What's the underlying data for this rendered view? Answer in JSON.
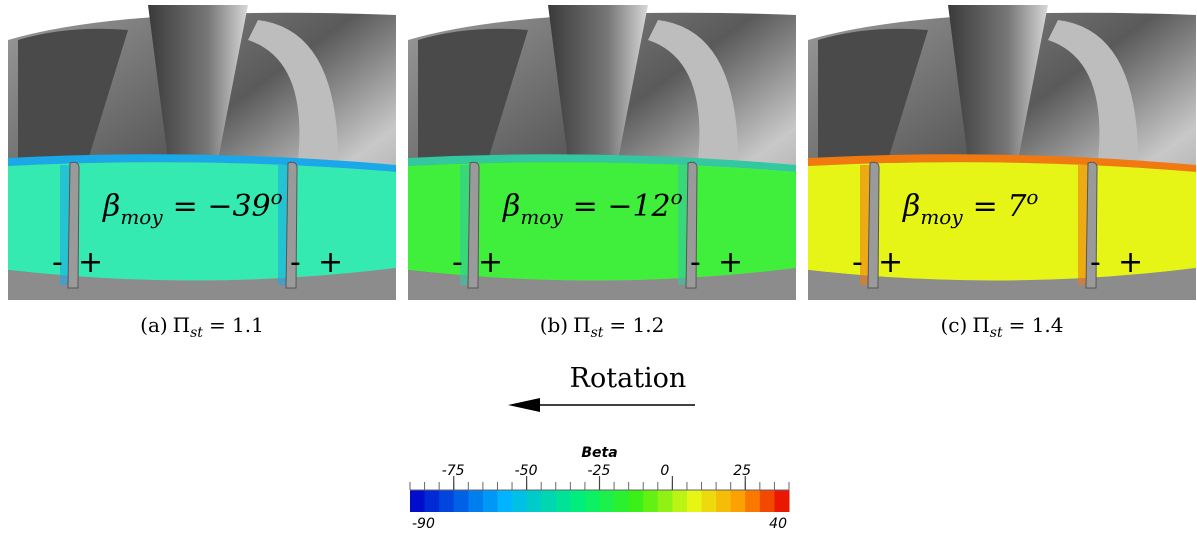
{
  "panels": [
    {
      "caption": {
        "label": "(a)",
        "symbol": "Π",
        "subscript": "st",
        "equals": "= 1.1"
      },
      "annotation": {
        "symbol": "β",
        "subscript": "moy",
        "equals": "= −39",
        "superscript": "o"
      },
      "signs": [
        "-",
        "+",
        "-",
        "+"
      ]
    },
    {
      "caption": {
        "label": "(b)",
        "symbol": "Π",
        "subscript": "st",
        "equals": "= 1.2"
      },
      "annotation": {
        "symbol": "β",
        "subscript": "moy",
        "equals": "= −12",
        "superscript": "o"
      },
      "signs": [
        "-",
        "+",
        "-",
        "+"
      ]
    },
    {
      "caption": {
        "label": "(c)",
        "symbol": "Π",
        "subscript": "st",
        "equals": "= 1.4"
      },
      "annotation": {
        "symbol": "β",
        "subscript": "moy",
        "equals": "= 7",
        "superscript": "o"
      },
      "signs": [
        "-",
        "+",
        "-",
        "+"
      ]
    }
  ],
  "rotation": {
    "label": "Rotation"
  },
  "colorbar": {
    "title": "Beta",
    "range": [
      -90,
      40
    ],
    "ticks": [
      -75,
      -50,
      -25,
      0,
      25
    ]
  }
}
